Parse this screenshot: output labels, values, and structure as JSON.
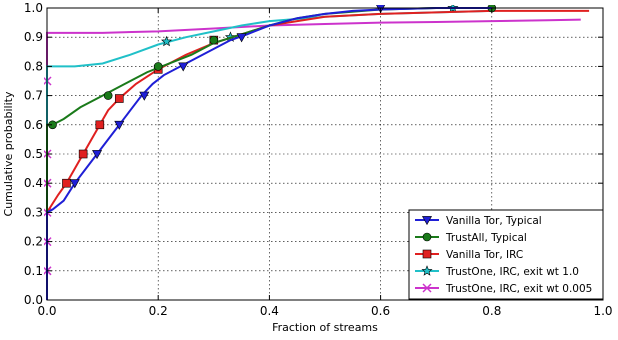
{
  "chart_data": {
    "type": "line",
    "title": "",
    "xlabel": "Fraction of streams",
    "ylabel": "Cumulative probability",
    "xlim": [
      0,
      1
    ],
    "ylim": [
      0,
      1
    ],
    "x_ticks": [
      "0.0",
      "0.2",
      "0.4",
      "0.6",
      "0.8",
      "1.0"
    ],
    "y_ticks": [
      "0.0",
      "0.1",
      "0.2",
      "0.3",
      "0.4",
      "0.5",
      "0.6",
      "0.7",
      "0.8",
      "0.9",
      "1.0"
    ],
    "grid": true,
    "legend_position": "bottom-right",
    "series": [
      {
        "name": "Vanilla Tor, Typical",
        "color": "#1f1fd6",
        "marker": "triangle-down",
        "x": [
          0.0,
          0.0,
          0.01,
          0.03,
          0.05,
          0.07,
          0.09,
          0.11,
          0.13,
          0.15,
          0.17,
          0.19,
          0.21,
          0.24,
          0.27,
          0.3,
          0.33,
          0.36,
          0.4,
          0.45,
          0.5,
          0.55,
          0.6,
          0.7,
          0.8
        ],
        "y": [
          0.0,
          0.3,
          0.31,
          0.34,
          0.4,
          0.45,
          0.5,
          0.55,
          0.6,
          0.65,
          0.7,
          0.74,
          0.77,
          0.8,
          0.83,
          0.86,
          0.89,
          0.91,
          0.94,
          0.965,
          0.98,
          0.99,
          0.995,
          1.0,
          1.0
        ],
        "markers_x": [
          0.05,
          0.09,
          0.13,
          0.175,
          0.245,
          0.35,
          0.6
        ],
        "markers_y": [
          0.4,
          0.5,
          0.6,
          0.7,
          0.8,
          0.9,
          1.0
        ]
      },
      {
        "name": "TrustAll, Typical",
        "color": "#1a7a1a",
        "marker": "circle",
        "x": [
          0.0,
          0.0,
          0.01,
          0.03,
          0.06,
          0.1,
          0.14,
          0.18,
          0.22,
          0.26,
          0.3,
          0.35,
          0.4,
          0.45,
          0.5,
          0.6,
          0.7,
          0.8
        ],
        "y": [
          0.0,
          0.6,
          0.6,
          0.62,
          0.66,
          0.7,
          0.74,
          0.78,
          0.81,
          0.84,
          0.88,
          0.91,
          0.94,
          0.965,
          0.98,
          0.995,
          1.0,
          1.0
        ],
        "markers_x": [
          0.01,
          0.11,
          0.2,
          0.3,
          0.8
        ],
        "markers_y": [
          0.6,
          0.7,
          0.8,
          0.89,
          1.0
        ]
      },
      {
        "name": "Vanilla Tor, IRC",
        "color": "#e02020",
        "marker": "square",
        "x": [
          0.0,
          0.0,
          0.01,
          0.02,
          0.035,
          0.05,
          0.065,
          0.08,
          0.095,
          0.11,
          0.13,
          0.16,
          0.2,
          0.25,
          0.3,
          0.35,
          0.4,
          0.5,
          0.6,
          0.7,
          0.8,
          0.9,
          0.975
        ],
        "y": [
          0.0,
          0.3,
          0.33,
          0.36,
          0.4,
          0.45,
          0.5,
          0.55,
          0.6,
          0.65,
          0.69,
          0.74,
          0.79,
          0.84,
          0.88,
          0.91,
          0.94,
          0.97,
          0.98,
          0.985,
          0.99,
          0.99,
          0.99
        ],
        "markers_x": [
          0.035,
          0.065,
          0.095,
          0.13,
          0.2,
          0.3
        ],
        "markers_y": [
          0.4,
          0.5,
          0.6,
          0.69,
          0.79,
          0.89
        ]
      },
      {
        "name": "TrustOne, IRC, exit wt 1.0",
        "color": "#20c0c8",
        "marker": "star",
        "x": [
          0.0,
          0.0,
          0.05,
          0.1,
          0.15,
          0.2,
          0.25,
          0.3,
          0.35,
          0.4,
          0.5,
          0.6,
          0.7,
          0.8
        ],
        "y": [
          0.0,
          0.8,
          0.8,
          0.81,
          0.84,
          0.875,
          0.9,
          0.92,
          0.94,
          0.955,
          0.97,
          0.98,
          0.985,
          0.99
        ],
        "markers_x": [
          0.215,
          0.33,
          0.73
        ],
        "markers_y": [
          0.885,
          0.9,
          1.0
        ]
      },
      {
        "name": "TrustOne, IRC, exit wt 0.005",
        "color": "#cc33cc",
        "marker": "x",
        "x": [
          0.0,
          0.0,
          0.1,
          0.2,
          0.3,
          0.4,
          0.5,
          0.6,
          0.7,
          0.8,
          0.9,
          0.96
        ],
        "y": [
          0.0,
          0.915,
          0.915,
          0.92,
          0.93,
          0.94,
          0.945,
          0.95,
          0.952,
          0.955,
          0.958,
          0.96
        ],
        "markers_x": [
          0.0,
          0.0,
          0.0,
          0.0,
          0.0,
          0.0
        ],
        "markers_y": [
          0.1,
          0.2,
          0.3,
          0.4,
          0.5,
          0.75
        ]
      }
    ]
  }
}
